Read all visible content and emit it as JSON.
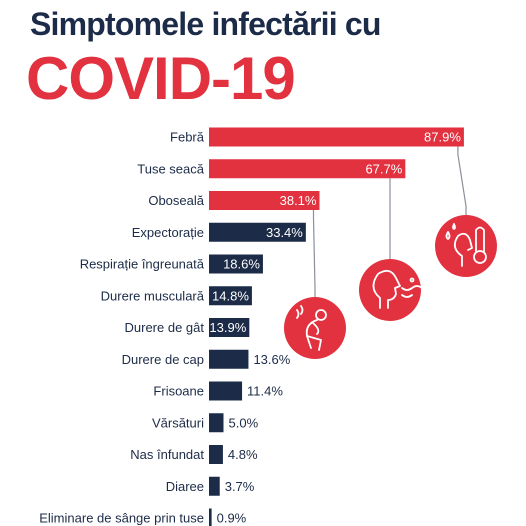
{
  "header": {
    "title_line1": "Simptomele infectării cu",
    "title_line2": "COVID-19"
  },
  "colors": {
    "highlight": "#e2313f",
    "default": "#1c2b47",
    "circle": "#e2313f"
  },
  "icons": [
    "sick-stomach-icon",
    "coughing-icon",
    "fever-thermometer-icon"
  ],
  "chart_data": {
    "type": "bar",
    "orientation": "horizontal",
    "title": "Simptomele infectării cu COVID-19",
    "categories": [
      "Febră",
      "Tuse seacă",
      "Oboseală",
      "Expectorație",
      "Respirație îngreunată",
      "Durere musculară",
      "Durere de gât",
      "Durere de cap",
      "Frisoane",
      "Vărsături",
      "Nas înfundat",
      "Diaree",
      "Eliminare de sânge prin tuse"
    ],
    "values": [
      87.9,
      67.7,
      38.1,
      33.4,
      18.6,
      14.8,
      13.9,
      13.6,
      11.4,
      5.0,
      4.8,
      3.7,
      0.9
    ],
    "labels": [
      "87.9%",
      "67.7%",
      "38.1%",
      "33.4%",
      "18.6%",
      "14.8%",
      "13.9%",
      "13.6%",
      "11.4%",
      "5.0%",
      "4.8%",
      "3.7%",
      "0.9%"
    ],
    "highlighted": [
      "Febră",
      "Tuse seacă",
      "Oboseală"
    ],
    "unit": "%",
    "xlim": [
      0,
      100
    ]
  }
}
